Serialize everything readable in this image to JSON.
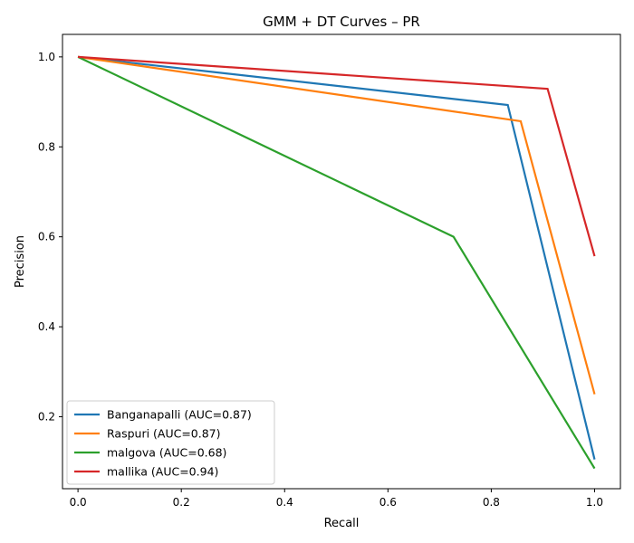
{
  "chart_data": {
    "type": "line",
    "title": "GMM + DT Curves – PR",
    "xlabel": "Recall",
    "ylabel": "Precision",
    "xlim": [
      -0.03,
      1.05
    ],
    "ylim": [
      0.04,
      1.05
    ],
    "xticks": [
      0.0,
      0.2,
      0.4,
      0.6,
      0.8,
      1.0
    ],
    "xtick_labels": [
      "0.0",
      "0.2",
      "0.4",
      "0.6",
      "0.8",
      "1.0"
    ],
    "yticks": [
      0.2,
      0.4,
      0.6,
      0.8,
      1.0
    ],
    "ytick_labels": [
      "0.2",
      "0.4",
      "0.6",
      "0.8",
      "1.0"
    ],
    "grid": false,
    "legend_position": "lower-left",
    "series": [
      {
        "name": "Banganapalli (AUC=0.87)",
        "color": "#1f77b4",
        "x": [
          0.0,
          0.832,
          1.0
        ],
        "y": [
          1.0,
          0.893,
          0.105
        ]
      },
      {
        "name": "Raspuri (AUC=0.87)",
        "color": "#ff7f0e",
        "x": [
          0.0,
          0.857,
          1.0
        ],
        "y": [
          1.0,
          0.857,
          0.25
        ]
      },
      {
        "name": "malgova (AUC=0.68)",
        "color": "#2ca02c",
        "x": [
          0.0,
          0.727,
          1.0
        ],
        "y": [
          1.0,
          0.6,
          0.085
        ]
      },
      {
        "name": "mallika (AUC=0.94)",
        "color": "#d62728",
        "x": [
          0.0,
          0.909,
          1.0
        ],
        "y": [
          1.0,
          0.929,
          0.557
        ]
      }
    ]
  }
}
